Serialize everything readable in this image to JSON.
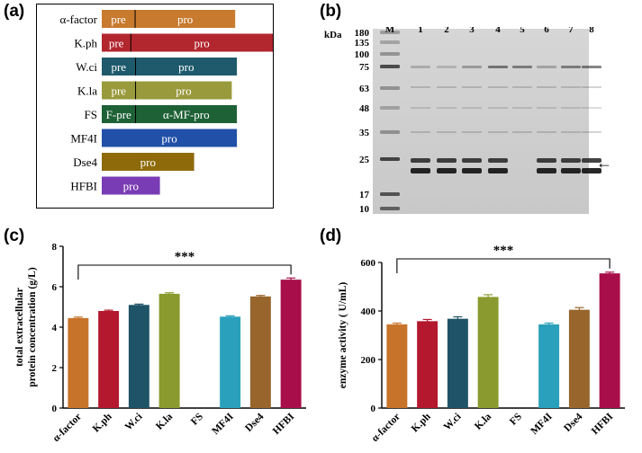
{
  "panels": {
    "a": {
      "label": "(a)"
    },
    "b": {
      "label": "(b)"
    },
    "c": {
      "label": "(c)"
    },
    "d": {
      "label": "(d)"
    }
  },
  "signal_peptides": {
    "rows": [
      {
        "name": "α-factor",
        "color": "#C87A2E",
        "segments": [
          {
            "text": "pre",
            "frac": 0.25
          },
          {
            "text": "pro",
            "frac": 0.75
          }
        ],
        "length_frac": 0.78
      },
      {
        "name": "K.ph",
        "color": "#B2262E",
        "segments": [
          {
            "text": "pre",
            "frac": 0.17
          },
          {
            "text": "pro",
            "frac": 0.83
          }
        ],
        "length_frac": 1.0
      },
      {
        "name": "W.ci",
        "color": "#1E5A6B",
        "segments": [
          {
            "text": "pre",
            "frac": 0.25
          },
          {
            "text": "pro",
            "frac": 0.75
          }
        ],
        "length_frac": 0.79
      },
      {
        "name": "K.la",
        "color": "#999A3C",
        "segments": [
          {
            "text": "pre",
            "frac": 0.26
          },
          {
            "text": "pro",
            "frac": 0.74
          }
        ],
        "length_frac": 0.76
      },
      {
        "name": "FS",
        "color": "#1E6136",
        "segments": [
          {
            "text": "F-pre",
            "frac": 0.25
          },
          {
            "text": "α-MF-pro",
            "frac": 0.75
          }
        ],
        "length_frac": 0.79
      },
      {
        "name": "MF4I",
        "color": "#2050A8",
        "segments": [
          {
            "text": "pro",
            "frac": 1.0
          }
        ],
        "length_frac": 0.79
      },
      {
        "name": "Dse4",
        "color": "#8E6A0A",
        "segments": [
          {
            "text": "pro",
            "frac": 1.0
          }
        ],
        "length_frac": 0.54
      },
      {
        "name": "HFBI",
        "color": "#7A3CB4",
        "segments": [
          {
            "text": "pro",
            "frac": 1.0
          }
        ],
        "length_frac": 0.34
      }
    ]
  },
  "gel": {
    "unit_label": "kDa",
    "lanes": [
      "M",
      "1",
      "2",
      "3",
      "4",
      "5",
      "6",
      "7",
      "8"
    ],
    "markers": [
      "180",
      "135",
      "100",
      "75",
      "63",
      "48",
      "35",
      "25",
      "17",
      "10"
    ],
    "arrow": "←"
  },
  "chart_data": [
    {
      "type": "bar",
      "categories": [
        "α-factor",
        "K.ph",
        "W.ci",
        "K.la",
        "FS",
        "MF4I",
        "Dse4",
        "HFBI"
      ],
      "values": [
        4.45,
        4.8,
        5.1,
        5.65,
        0,
        4.52,
        5.52,
        6.35
      ],
      "errors": [
        0.05,
        0.04,
        0.04,
        0.05,
        0,
        0.04,
        0.05,
        0.08
      ],
      "colors": [
        "#C8732A",
        "#B3182F",
        "#1F5468",
        "#8A9A2E",
        "#FFFFFF",
        "#2AA0BC",
        "#98652C",
        "#A80F4A"
      ],
      "ylabel": "total extracellular protein concentration (g/L)",
      "ylabel_lines": [
        "total extracellular",
        "protein concentration (g/L)"
      ],
      "ylim": [
        0,
        8
      ],
      "yticks": [
        "0",
        "2",
        "4",
        "6",
        "8"
      ],
      "significance": "***",
      "bracket": [
        "α-factor",
        "HFBI"
      ]
    },
    {
      "type": "bar",
      "categories": [
        "α-factor",
        "K.ph",
        "W.ci",
        "K.la",
        "FS",
        "MF4I",
        "Dse4",
        "HFBI"
      ],
      "values": [
        345,
        358,
        368,
        458,
        0,
        345,
        405,
        555
      ],
      "errors": [
        5,
        7,
        8,
        9,
        0,
        5,
        9,
        5
      ],
      "colors": [
        "#C8732A",
        "#B3182F",
        "#1F5468",
        "#8A9A2E",
        "#FFFFFF",
        "#2AA0BC",
        "#98652C",
        "#A80F4A"
      ],
      "ylabel": "enzyme activity ( U/mL)",
      "ylim": [
        0,
        600
      ],
      "yticks": [
        "0",
        "200",
        "400",
        "600"
      ],
      "significance": "***",
      "bracket": [
        "α-factor",
        "HFBI"
      ]
    }
  ]
}
